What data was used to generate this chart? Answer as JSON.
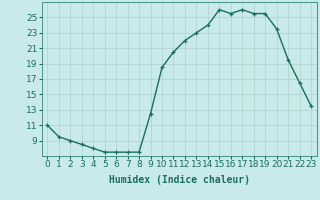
{
  "x": [
    0,
    1,
    2,
    3,
    4,
    5,
    6,
    7,
    8,
    9,
    10,
    11,
    12,
    13,
    14,
    15,
    16,
    17,
    18,
    19,
    20,
    21,
    22,
    23
  ],
  "y": [
    11,
    9.5,
    9,
    8.5,
    8,
    7.5,
    7.5,
    7.5,
    7.5,
    12.5,
    18.5,
    20.5,
    22,
    23,
    24,
    26,
    25.5,
    26,
    25.5,
    25.5,
    23.5,
    19.5,
    16.5,
    13.5
  ],
  "line_color": "#1a6e5e",
  "marker": "+",
  "bg_color": "#c8eaea",
  "grid_color": "#b0d0d0",
  "xlabel": "Humidex (Indice chaleur)",
  "xlim": [
    -0.5,
    23.5
  ],
  "ylim": [
    7,
    27
  ],
  "yticks": [
    9,
    11,
    13,
    15,
    17,
    19,
    21,
    23,
    25
  ],
  "xticks": [
    0,
    1,
    2,
    3,
    4,
    5,
    6,
    7,
    8,
    9,
    10,
    11,
    12,
    13,
    14,
    15,
    16,
    17,
    18,
    19,
    20,
    21,
    22,
    23
  ],
  "xlabel_fontsize": 7,
  "tick_fontsize": 6.5,
  "linewidth": 1.0,
  "markersize": 3.5
}
